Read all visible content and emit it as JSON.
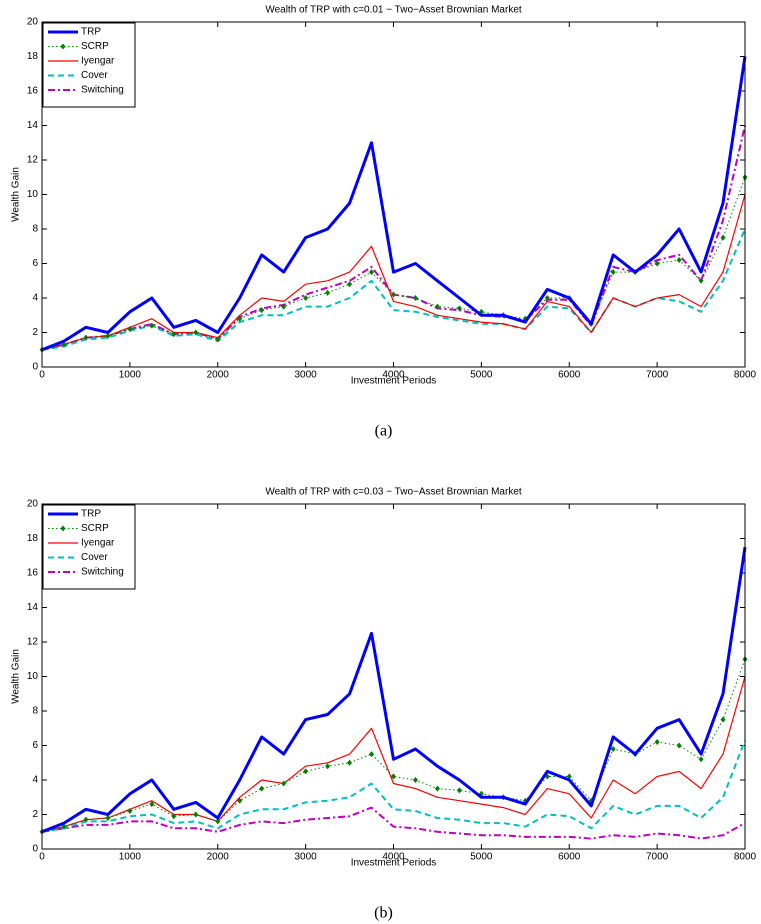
{
  "chart_data": [
    {
      "type": "line",
      "title": "Wealth of TRP with c=0.01 − Two−Asset Brownian Market",
      "xlabel": "Investment Periods",
      "ylabel": "Wealth Gain",
      "caption": "(a)",
      "x": [
        0,
        250,
        500,
        750,
        1000,
        1250,
        1500,
        1750,
        2000,
        2250,
        2500,
        2750,
        3000,
        3250,
        3500,
        3750,
        4000,
        4250,
        4500,
        4750,
        5000,
        5250,
        5500,
        5750,
        6000,
        6250,
        6500,
        6750,
        7000,
        7250,
        7500,
        7750,
        8000
      ],
      "xlim": [
        0,
        8000
      ],
      "xticks": [
        0,
        1000,
        2000,
        3000,
        4000,
        5000,
        6000,
        7000,
        8000
      ],
      "ylim": [
        0,
        20
      ],
      "yticks": [
        0,
        2,
        4,
        6,
        8,
        10,
        12,
        14,
        16,
        18,
        20
      ],
      "legend": "upper-left",
      "series": [
        {
          "name": "TRP",
          "color": "#0000ff",
          "style": "solid",
          "width": 3,
          "values": [
            1,
            1.5,
            2.3,
            2.0,
            3.2,
            4.0,
            2.3,
            2.7,
            2.0,
            4.0,
            6.5,
            5.5,
            7.5,
            8.0,
            9.5,
            13.0,
            5.5,
            6.0,
            5.0,
            4.0,
            3.0,
            3.0,
            2.6,
            4.5,
            4.0,
            2.5,
            6.5,
            5.5,
            6.5,
            8.0,
            5.5,
            9.5,
            18.0
          ]
        },
        {
          "name": "SCRP",
          "color": "#007f00",
          "style": "dotted",
          "marker": "diamond",
          "width": 1,
          "values": [
            1,
            1.3,
            1.7,
            1.8,
            2.2,
            2.4,
            1.9,
            2.0,
            1.6,
            2.8,
            3.3,
            3.5,
            4.0,
            4.3,
            4.8,
            5.5,
            4.2,
            4.0,
            3.5,
            3.4,
            3.2,
            3.0,
            2.8,
            4.0,
            4.0,
            2.5,
            5.5,
            5.5,
            6.0,
            6.2,
            5.0,
            7.5,
            11.0
          ]
        },
        {
          "name": "Iyengar",
          "color": "#ff0000",
          "style": "solid",
          "width": 1.2,
          "values": [
            1,
            1.3,
            1.7,
            1.8,
            2.3,
            2.8,
            2.0,
            2.0,
            1.7,
            3.0,
            4.0,
            3.8,
            4.8,
            5.0,
            5.5,
            7.0,
            3.8,
            3.5,
            3.0,
            2.8,
            2.6,
            2.5,
            2.2,
            3.8,
            3.5,
            2.0,
            4.0,
            3.5,
            4.0,
            4.2,
            3.5,
            5.5,
            10.0
          ]
        },
        {
          "name": "Cover",
          "color": "#00bfbf",
          "style": "dashed",
          "width": 2,
          "values": [
            1,
            1.2,
            1.6,
            1.7,
            2.1,
            2.4,
            1.8,
            1.9,
            1.5,
            2.6,
            3.0,
            3.0,
            3.5,
            3.5,
            4.0,
            5.0,
            3.3,
            3.2,
            2.9,
            2.7,
            2.5,
            2.5,
            2.2,
            3.5,
            3.4,
            2.0,
            4.0,
            3.5,
            4.0,
            3.8,
            3.2,
            5.0,
            8.0
          ]
        },
        {
          "name": "Switching",
          "color": "#bf00bf",
          "style": "dashdot",
          "width": 2,
          "values": [
            1,
            1.3,
            1.7,
            1.8,
            2.2,
            2.5,
            1.9,
            2.0,
            1.6,
            2.9,
            3.4,
            3.6,
            4.2,
            4.6,
            5.0,
            5.8,
            4.2,
            4.0,
            3.4,
            3.3,
            3.0,
            2.9,
            2.7,
            3.9,
            3.9,
            2.4,
            5.8,
            5.5,
            6.2,
            6.5,
            5.0,
            8.5,
            14.0
          ]
        }
      ]
    },
    {
      "type": "line",
      "title": "Wealth of TRP with c=0.03 − Two−Asset Brownian Market",
      "xlabel": "Investment Periods",
      "ylabel": "Wealth Gain",
      "caption": "(b)",
      "x": [
        0,
        250,
        500,
        750,
        1000,
        1250,
        1500,
        1750,
        2000,
        2250,
        2500,
        2750,
        3000,
        3250,
        3500,
        3750,
        4000,
        4250,
        4500,
        4750,
        5000,
        5250,
        5500,
        5750,
        6000,
        6250,
        6500,
        6750,
        7000,
        7250,
        7500,
        7750,
        8000
      ],
      "xlim": [
        0,
        8000
      ],
      "xticks": [
        0,
        1000,
        2000,
        3000,
        4000,
        5000,
        6000,
        7000,
        8000
      ],
      "ylim": [
        0,
        20
      ],
      "yticks": [
        0,
        2,
        4,
        6,
        8,
        10,
        12,
        14,
        16,
        18,
        20
      ],
      "legend": "upper-left",
      "series": [
        {
          "name": "TRP",
          "color": "#0000ff",
          "style": "solid",
          "width": 3,
          "values": [
            1,
            1.5,
            2.3,
            2.0,
            3.2,
            4.0,
            2.3,
            2.7,
            1.8,
            4.0,
            6.5,
            5.5,
            7.5,
            7.8,
            9.0,
            12.5,
            5.2,
            5.8,
            4.8,
            4.0,
            3.0,
            3.0,
            2.6,
            4.5,
            4.0,
            2.5,
            6.5,
            5.5,
            7.0,
            7.5,
            5.5,
            9.0,
            17.5
          ]
        },
        {
          "name": "SCRP",
          "color": "#007f00",
          "style": "dotted",
          "marker": "diamond",
          "width": 1,
          "values": [
            1,
            1.3,
            1.7,
            1.8,
            2.2,
            2.6,
            1.9,
            2.0,
            1.6,
            2.8,
            3.5,
            3.8,
            4.5,
            4.8,
            5.0,
            5.5,
            4.2,
            4.0,
            3.5,
            3.4,
            3.2,
            3.0,
            2.8,
            4.2,
            4.2,
            2.8,
            5.8,
            5.5,
            6.2,
            6.0,
            5.2,
            7.5,
            11.0
          ]
        },
        {
          "name": "Iyengar",
          "color": "#ff0000",
          "style": "solid",
          "width": 1.2,
          "values": [
            1,
            1.3,
            1.7,
            1.8,
            2.3,
            2.8,
            2.0,
            2.0,
            1.6,
            3.0,
            4.0,
            3.8,
            4.8,
            5.0,
            5.5,
            7.0,
            3.8,
            3.5,
            3.0,
            2.8,
            2.6,
            2.4,
            2.0,
            3.5,
            3.2,
            1.8,
            4.0,
            3.2,
            4.2,
            4.5,
            3.5,
            5.5,
            10.0
          ]
        },
        {
          "name": "Cover",
          "color": "#00bfbf",
          "style": "dashed",
          "width": 2,
          "values": [
            1,
            1.2,
            1.6,
            1.6,
            1.9,
            2.0,
            1.5,
            1.6,
            1.2,
            2.0,
            2.3,
            2.3,
            2.7,
            2.8,
            3.0,
            3.8,
            2.3,
            2.2,
            1.8,
            1.7,
            1.5,
            1.5,
            1.3,
            2.0,
            1.9,
            1.2,
            2.5,
            2.0,
            2.5,
            2.5,
            1.8,
            3.0,
            6.3
          ]
        },
        {
          "name": "Switching",
          "color": "#bf00bf",
          "style": "dashdot",
          "width": 2,
          "values": [
            1,
            1.2,
            1.4,
            1.4,
            1.6,
            1.6,
            1.2,
            1.2,
            1.0,
            1.4,
            1.6,
            1.5,
            1.7,
            1.8,
            1.9,
            2.4,
            1.3,
            1.2,
            1.0,
            0.9,
            0.8,
            0.8,
            0.7,
            0.7,
            0.7,
            0.6,
            0.8,
            0.7,
            0.9,
            0.8,
            0.6,
            0.8,
            1.5
          ]
        }
      ]
    }
  ]
}
